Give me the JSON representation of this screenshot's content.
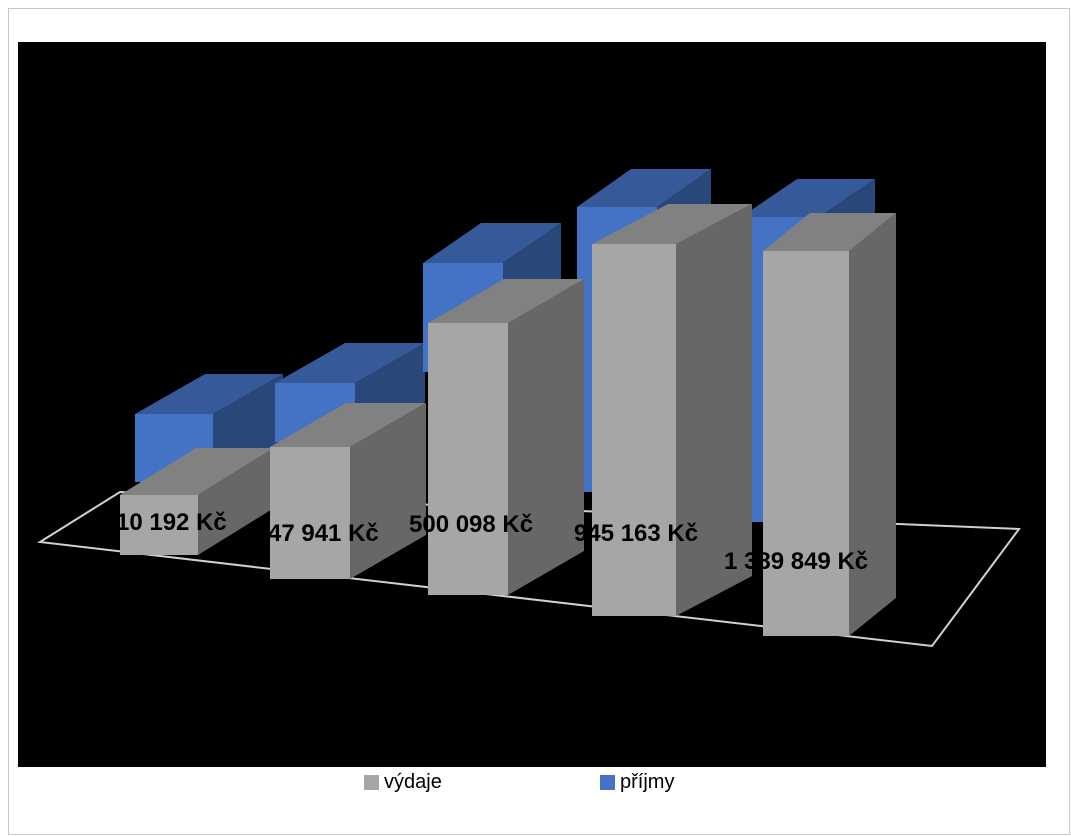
{
  "chart_data": {
    "type": "bar",
    "categories": [
      "",
      "",
      "",
      "",
      ""
    ],
    "series": [
      {
        "name": "výdaje",
        "values": [
          10192,
          47941,
          500098,
          945163,
          1389849
        ],
        "labels": [
          "10 192 Kč",
          "47 941 Kč",
          "500 098 Kč",
          "945 163 Kč",
          "1 389 849 Kč"
        ],
        "color": "#a6a6a6"
      },
      {
        "name": "příjmy",
        "values": [
          null,
          null,
          null,
          null,
          null
        ],
        "labels": [],
        "color": "#4472c4"
      }
    ],
    "title": "",
    "xlabel": "",
    "ylabel": "",
    "legend": "bottom",
    "grid": false,
    "style": "3d-clustered-column",
    "background": "#000000"
  }
}
